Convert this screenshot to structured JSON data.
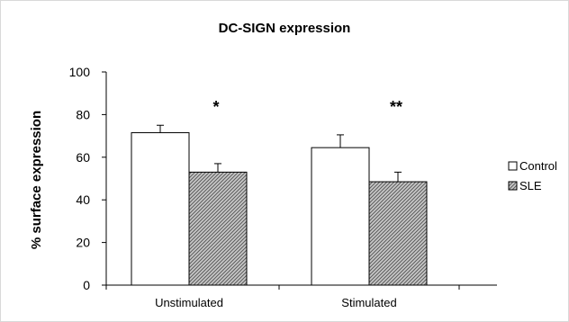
{
  "chart_data": {
    "type": "bar",
    "title": "DC-SIGN expression",
    "ylabel": "% surface expression",
    "xlabel": "",
    "ylim": [
      0,
      100
    ],
    "yticks": [
      0,
      20,
      40,
      60,
      80,
      100
    ],
    "categories": [
      "Unstimulated",
      "Stimulated"
    ],
    "series": [
      {
        "name": "Control",
        "values": [
          71.5,
          64.5
        ],
        "errors": [
          3.5,
          6.0
        ],
        "color": "#ffffff"
      },
      {
        "name": "SLE",
        "values": [
          53,
          48.5
        ],
        "errors": [
          4.0,
          4.5
        ],
        "color": "#999999"
      }
    ],
    "annotations": [
      "*",
      "**"
    ],
    "legend_position": "right"
  }
}
